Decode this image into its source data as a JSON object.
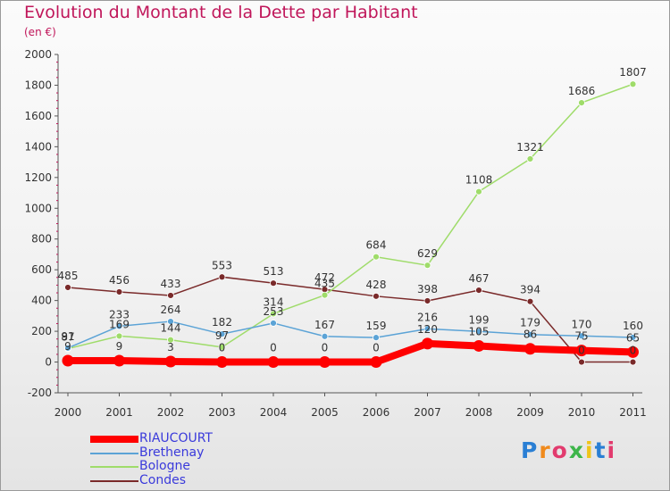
{
  "title": "Evolution du Montant de la Dette par Habitant",
  "subtitle": "(en €)",
  "logo": "Proxiti",
  "chart_data": {
    "type": "line",
    "title": "Evolution du Montant de la Dette par Habitant",
    "subtitle": "(en €)",
    "xlabel": "",
    "ylabel": "",
    "x": [
      2000,
      2001,
      2002,
      2003,
      2004,
      2005,
      2006,
      2007,
      2008,
      2009,
      2010,
      2011
    ],
    "ylim": [
      -200,
      2000
    ],
    "yticks": [
      -200,
      0,
      200,
      400,
      600,
      800,
      1000,
      1200,
      1400,
      1600,
      1800,
      2000
    ],
    "grid": false,
    "legend_position": "bottom-left",
    "series": [
      {
        "name": "RIAUCOURT",
        "color": "#ff0000",
        "values": [
          9,
          9,
          3,
          0,
          0,
          0,
          0,
          120,
          105,
          86,
          75,
          65
        ],
        "labels": [
          "9",
          "9",
          "3",
          "0",
          "0",
          "0",
          "0",
          "120",
          "105",
          "86",
          "75",
          "65"
        ]
      },
      {
        "name": "Brethenay",
        "color": "#5ba3d6",
        "values": [
          91,
          233,
          264,
          182,
          253,
          167,
          159,
          216,
          199,
          179,
          170,
          160
        ],
        "labels": [
          "91",
          "233",
          "264",
          "182",
          "253",
          "167",
          "159",
          "216",
          "199",
          "179",
          "170",
          "160"
        ]
      },
      {
        "name": "Bologne",
        "color": "#9fdc6a",
        "values": [
          87,
          169,
          144,
          97,
          314,
          435,
          684,
          629,
          1108,
          1321,
          1686,
          1807
        ],
        "labels": [
          "87",
          "169",
          "144",
          "97",
          "314",
          "435",
          "684",
          "629",
          "1108",
          "1321",
          "1686",
          "1807"
        ]
      },
      {
        "name": "Condes",
        "color": "#7a2a2a",
        "values": [
          485,
          456,
          433,
          553,
          513,
          472,
          428,
          398,
          467,
          394,
          0,
          0
        ],
        "labels": [
          "485",
          "456",
          "433",
          "553",
          "513",
          "472",
          "428",
          "398",
          "467",
          "394",
          "0",
          "0"
        ]
      }
    ]
  }
}
